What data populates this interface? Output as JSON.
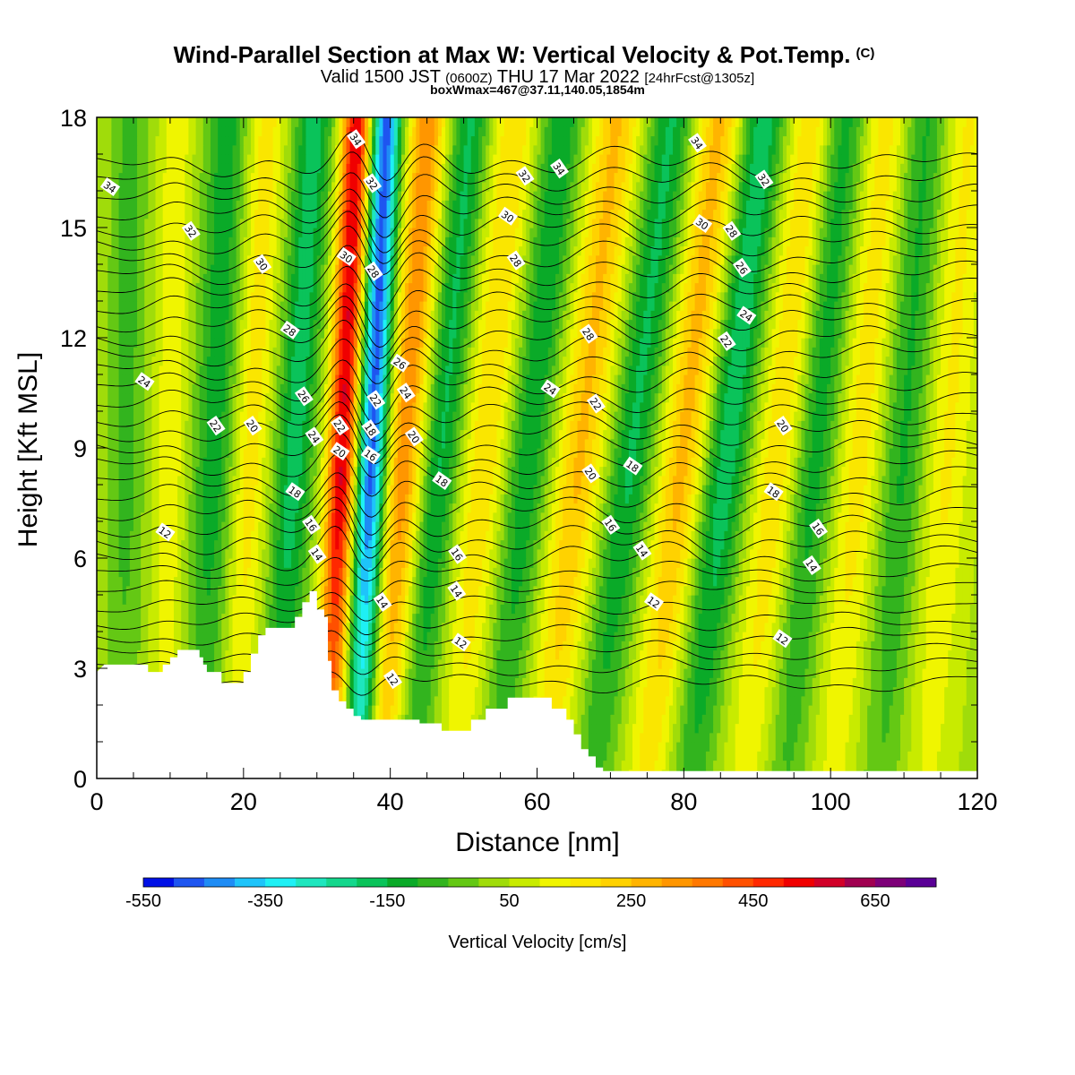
{
  "chart_data": {
    "type": "heatmap",
    "title": "Wind-Parallel Section at Max W: Vertical Velocity & Pot.Temp.",
    "title_mark": "(C)",
    "subtitle_parts": [
      "Valid 1500 JST",
      "(0600Z)",
      "THU 17 Mar 2022",
      "[24hrFcst@1305z]"
    ],
    "subtitle2": "boxWmax=467@37.11,140.05,1854m",
    "xlabel": "Distance [nm]",
    "ylabel": "Height [Kft MSL]",
    "xlim": [
      0,
      120
    ],
    "ylim": [
      0,
      18
    ],
    "xticks": [
      0,
      20,
      40,
      60,
      80,
      100,
      120
    ],
    "yticks": [
      0,
      3,
      6,
      9,
      12,
      15,
      18
    ],
    "colorbar": {
      "label": "Vertical Velocity [cm/s]",
      "tick_values": [
        -550,
        -350,
        -150,
        50,
        250,
        450,
        650
      ],
      "colors": [
        "#0010e6",
        "#1e55f0",
        "#1e8cf5",
        "#1ec4fa",
        "#1ef0f5",
        "#1ee6be",
        "#14d78c",
        "#0ac35a",
        "#0aaa28",
        "#32b41e",
        "#64c814",
        "#a0dc0a",
        "#c8eb00",
        "#f0f500",
        "#fae600",
        "#ffd200",
        "#ffb400",
        "#ff9600",
        "#ff7800",
        "#ff5000",
        "#ff2800",
        "#f00000",
        "#d20028",
        "#a00050",
        "#7d0078",
        "#5a0096"
      ],
      "min": -550,
      "max": 750
    },
    "terrain_profile_kft": [
      [
        0,
        2.9
      ],
      [
        1,
        3.1
      ],
      [
        7,
        3.1
      ],
      [
        7,
        2.9
      ],
      [
        9,
        2.9
      ],
      [
        9,
        3.1
      ],
      [
        10,
        3.1
      ],
      [
        10,
        3.3
      ],
      [
        11,
        3.3
      ],
      [
        11,
        3.5
      ],
      [
        14,
        3.5
      ],
      [
        14,
        3.3
      ],
      [
        14.5,
        3.3
      ],
      [
        14.5,
        3.1
      ],
      [
        15,
        3.1
      ],
      [
        15,
        2.9
      ],
      [
        17,
        2.9
      ],
      [
        17,
        2.6
      ],
      [
        20,
        2.6
      ],
      [
        20,
        2.9
      ],
      [
        21,
        2.9
      ],
      [
        21,
        3.4
      ],
      [
        22,
        3.4
      ],
      [
        22,
        3.9
      ],
      [
        23,
        3.9
      ],
      [
        23,
        4.1
      ],
      [
        27,
        4.1
      ],
      [
        27,
        4.4
      ],
      [
        28,
        4.4
      ],
      [
        28,
        4.8
      ],
      [
        29,
        4.8
      ],
      [
        29,
        5.1
      ],
      [
        30,
        5.1
      ],
      [
        30,
        4.6
      ],
      [
        31,
        4.6
      ],
      [
        31,
        4.4
      ],
      [
        31.5,
        4.4
      ],
      [
        31.5,
        3.2
      ],
      [
        32,
        3.2
      ],
      [
        32,
        2.4
      ],
      [
        33,
        2.4
      ],
      [
        33,
        2.1
      ],
      [
        34,
        2.1
      ],
      [
        34,
        1.9
      ],
      [
        35,
        1.9
      ],
      [
        35,
        1.7
      ],
      [
        36,
        1.7
      ],
      [
        36,
        1.6
      ],
      [
        44,
        1.6
      ],
      [
        44,
        1.5
      ],
      [
        47,
        1.5
      ],
      [
        47,
        1.3
      ],
      [
        51,
        1.3
      ],
      [
        51,
        1.6
      ],
      [
        53,
        1.6
      ],
      [
        53,
        1.9
      ],
      [
        56,
        1.9
      ],
      [
        56,
        2.2
      ],
      [
        62,
        2.2
      ],
      [
        62,
        1.9
      ],
      [
        64,
        1.9
      ],
      [
        64,
        1.6
      ],
      [
        65,
        1.6
      ],
      [
        65,
        1.2
      ],
      [
        66,
        1.2
      ],
      [
        66,
        0.8
      ],
      [
        67,
        0.8
      ],
      [
        67,
        0.6
      ],
      [
        68,
        0.6
      ],
      [
        68,
        0.3
      ],
      [
        69,
        0.3
      ],
      [
        69,
        0.2
      ],
      [
        120,
        0.2
      ]
    ],
    "w_bands": [
      {
        "x": 4,
        "w": -110,
        "width": 2.5,
        "tilt": 0.05
      },
      {
        "x": 10,
        "w": 110,
        "width": 2.0,
        "tilt": 0.1
      },
      {
        "x": 16,
        "w": -170,
        "width": 2.8,
        "tilt": 0.2
      },
      {
        "x": 21,
        "w": 140,
        "width": 2.4,
        "tilt": 0.25
      },
      {
        "x": 27,
        "w": -220,
        "width": 2.6,
        "tilt": 0.3
      },
      {
        "x": 33.5,
        "w": 520,
        "width": 2.0,
        "tilt": 0.22
      },
      {
        "x": 37.5,
        "w": -520,
        "width": 2.0,
        "tilt": 0.22
      },
      {
        "x": 42,
        "w": 300,
        "width": 2.5,
        "tilt": 0.35
      },
      {
        "x": 47,
        "w": -200,
        "width": 2.6,
        "tilt": 0.45
      },
      {
        "x": 53,
        "w": 160,
        "width": 3.0,
        "tilt": 0.45
      },
      {
        "x": 59,
        "w": -180,
        "width": 3.0,
        "tilt": 0.5
      },
      {
        "x": 66,
        "w": 220,
        "width": 3.2,
        "tilt": 0.55
      },
      {
        "x": 73,
        "w": -200,
        "width": 3.0,
        "tilt": 0.6
      },
      {
        "x": 80,
        "w": 230,
        "width": 3.0,
        "tilt": 0.55
      },
      {
        "x": 86,
        "w": -230,
        "width": 3.0,
        "tilt": 0.55
      },
      {
        "x": 93,
        "w": 160,
        "width": 3.0,
        "tilt": 0.5
      },
      {
        "x": 98,
        "w": -170,
        "width": 3.0,
        "tilt": 0.45
      },
      {
        "x": 104,
        "w": 140,
        "width": 3.0,
        "tilt": 0.4
      },
      {
        "x": 110,
        "w": -150,
        "width": 3.0,
        "tilt": 0.35
      },
      {
        "x": 116,
        "w": 120,
        "width": 3.0,
        "tilt": 0.3
      }
    ],
    "theta_levels": [
      12,
      14,
      16,
      18,
      20,
      22,
      24,
      26,
      28,
      30,
      32,
      34
    ],
    "contour_labels": [
      {
        "text": "34",
        "x": 1.8,
        "y": 16.1
      },
      {
        "text": "32",
        "x": 12.8,
        "y": 14.9
      },
      {
        "text": "30",
        "x": 22.5,
        "y": 14.0
      },
      {
        "text": "28",
        "x": 26.3,
        "y": 12.2
      },
      {
        "text": "26",
        "x": 28.2,
        "y": 10.4
      },
      {
        "text": "24",
        "x": 29.6,
        "y": 9.3
      },
      {
        "text": "24",
        "x": 6.5,
        "y": 10.8
      },
      {
        "text": "22",
        "x": 16.2,
        "y": 9.6
      },
      {
        "text": "20",
        "x": 21.2,
        "y": 9.6
      },
      {
        "text": "18",
        "x": 27.0,
        "y": 7.8
      },
      {
        "text": "16",
        "x": 29.2,
        "y": 6.9
      },
      {
        "text": "14",
        "x": 30.0,
        "y": 6.1
      },
      {
        "text": "12",
        "x": 9.3,
        "y": 6.7
      },
      {
        "text": "34",
        "x": 35.3,
        "y": 17.4
      },
      {
        "text": "32",
        "x": 37.5,
        "y": 16.2
      },
      {
        "text": "30",
        "x": 34.0,
        "y": 14.2
      },
      {
        "text": "28",
        "x": 37.7,
        "y": 13.8
      },
      {
        "text": "22",
        "x": 33.1,
        "y": 9.6
      },
      {
        "text": "20",
        "x": 33.1,
        "y": 8.9
      },
      {
        "text": "22",
        "x": 38.0,
        "y": 10.3
      },
      {
        "text": "18",
        "x": 37.3,
        "y": 9.5
      },
      {
        "text": "16",
        "x": 37.3,
        "y": 8.8
      },
      {
        "text": "14",
        "x": 38.9,
        "y": 4.8
      },
      {
        "text": "12",
        "x": 40.3,
        "y": 2.7
      },
      {
        "text": "26",
        "x": 41.3,
        "y": 11.3
      },
      {
        "text": "24",
        "x": 42.1,
        "y": 10.5
      },
      {
        "text": "20",
        "x": 43.2,
        "y": 9.3
      },
      {
        "text": "18",
        "x": 47.0,
        "y": 8.1
      },
      {
        "text": "16",
        "x": 49.1,
        "y": 6.1
      },
      {
        "text": "14",
        "x": 49.0,
        "y": 5.1
      },
      {
        "text": "12",
        "x": 49.6,
        "y": 3.7
      },
      {
        "text": "32",
        "x": 58.3,
        "y": 16.4
      },
      {
        "text": "34",
        "x": 63.0,
        "y": 16.6
      },
      {
        "text": "30",
        "x": 56.0,
        "y": 15.3
      },
      {
        "text": "28",
        "x": 57.1,
        "y": 14.1
      },
      {
        "text": "28",
        "x": 67.0,
        "y": 12.1
      },
      {
        "text": "24",
        "x": 61.8,
        "y": 10.6
      },
      {
        "text": "22",
        "x": 68.0,
        "y": 10.2
      },
      {
        "text": "20",
        "x": 67.3,
        "y": 8.3
      },
      {
        "text": "18",
        "x": 73.0,
        "y": 8.5
      },
      {
        "text": "16",
        "x": 70.0,
        "y": 6.9
      },
      {
        "text": "14",
        "x": 74.3,
        "y": 6.2
      },
      {
        "text": "12",
        "x": 75.9,
        "y": 4.8
      },
      {
        "text": "34",
        "x": 81.8,
        "y": 17.3
      },
      {
        "text": "32",
        "x": 90.9,
        "y": 16.3
      },
      {
        "text": "30",
        "x": 82.5,
        "y": 15.1
      },
      {
        "text": "28",
        "x": 86.5,
        "y": 14.9
      },
      {
        "text": "26",
        "x": 87.9,
        "y": 13.9
      },
      {
        "text": "24",
        "x": 88.5,
        "y": 12.6
      },
      {
        "text": "22",
        "x": 85.8,
        "y": 11.9
      },
      {
        "text": "20",
        "x": 93.5,
        "y": 9.6
      },
      {
        "text": "18",
        "x": 92.2,
        "y": 7.8
      },
      {
        "text": "16",
        "x": 98.3,
        "y": 6.8
      },
      {
        "text": "14",
        "x": 97.4,
        "y": 5.8
      },
      {
        "text": "12",
        "x": 93.4,
        "y": 3.8
      }
    ]
  }
}
